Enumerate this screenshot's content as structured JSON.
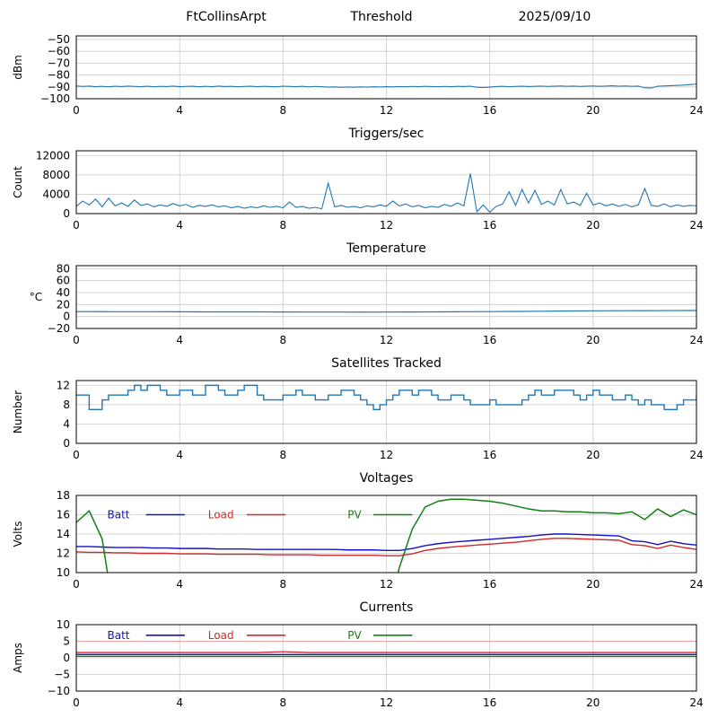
{
  "header": {
    "station": "FtCollinsArpt",
    "date": "2025/09/10"
  },
  "chart_data": [
    {
      "id": "threshold",
      "type": "line",
      "title": "Threshold",
      "ylabel": "dBm",
      "xlim": [
        0,
        24
      ],
      "xticks": [
        0,
        4,
        8,
        12,
        16,
        20,
        24
      ],
      "ylim": [
        -100,
        -47
      ],
      "yticks": [
        -50,
        -60,
        -70,
        -80,
        -90,
        -100
      ],
      "series": [
        {
          "name": "threshold_dbm",
          "color": "#1f77b4",
          "width": 1.1,
          "x0": 0,
          "dx": 0.25,
          "y": [
            -89.2,
            -89.6,
            -89.3,
            -89.8,
            -89.5,
            -89.9,
            -89.4,
            -89.7,
            -89.3,
            -89.6,
            -89.8,
            -89.4,
            -89.9,
            -89.5,
            -89.7,
            -89.3,
            -89.8,
            -89.6,
            -89.4,
            -89.9,
            -89.5,
            -89.8,
            -89.3,
            -89.7,
            -89.5,
            -89.9,
            -89.6,
            -89.4,
            -89.8,
            -89.5,
            -89.7,
            -89.9,
            -89.4,
            -89.6,
            -89.8,
            -89.5,
            -90.0,
            -89.6,
            -89.9,
            -90.2,
            -90.0,
            -90.4,
            -90.1,
            -90.3,
            -90.0,
            -90.2,
            -89.9,
            -90.1,
            -89.8,
            -90.0,
            -89.7,
            -89.9,
            -89.6,
            -89.8,
            -89.5,
            -89.7,
            -89.9,
            -89.6,
            -89.8,
            -89.5,
            -89.7,
            -89.4,
            -90.3,
            -90.6,
            -90.2,
            -89.7,
            -89.5,
            -89.8,
            -89.6,
            -89.4,
            -89.7,
            -89.5,
            -89.3,
            -89.6,
            -89.4,
            -89.2,
            -89.5,
            -89.3,
            -89.6,
            -89.4,
            -89.2,
            -89.5,
            -89.3,
            -89.1,
            -89.4,
            -89.2,
            -89.5,
            -89.3,
            -90.8,
            -91.0,
            -89.4,
            -89.2,
            -89.0,
            -88.8,
            -88.5,
            -88.0,
            -87.6
          ]
        }
      ]
    },
    {
      "id": "triggers",
      "type": "line",
      "title": "Triggers/sec",
      "ylabel": "Count",
      "xlim": [
        0,
        24
      ],
      "xticks": [
        0,
        4,
        8,
        12,
        16,
        20,
        24
      ],
      "ylim": [
        0,
        13000
      ],
      "yticks": [
        0,
        4000,
        8000,
        12000
      ],
      "series": [
        {
          "name": "triggers_per_sec",
          "color": "#1f77b4",
          "width": 1.1,
          "x0": 0,
          "dx": 0.25,
          "y": [
            1500,
            2600,
            1800,
            3000,
            1400,
            3200,
            1600,
            2200,
            1500,
            2800,
            1700,
            2000,
            1400,
            1800,
            1500,
            2100,
            1600,
            1900,
            1300,
            1700,
            1500,
            1800,
            1400,
            1600,
            1200,
            1500,
            1100,
            1400,
            1200,
            1600,
            1300,
            1500,
            1200,
            2400,
            1300,
            1500,
            1100,
            1300,
            1000,
            6300,
            1400,
            1700,
            1300,
            1500,
            1200,
            1600,
            1400,
            1800,
            1500,
            2600,
            1600,
            2000,
            1400,
            1700,
            1200,
            1500,
            1300,
            1900,
            1500,
            2200,
            1600,
            8300,
            400,
            1800,
            300,
            1500,
            2000,
            4500,
            1700,
            5000,
            2200,
            4800,
            1900,
            2600,
            1800,
            5000,
            2000,
            2400,
            1700,
            4200,
            1800,
            2200,
            1600,
            2000,
            1500,
            1900,
            1400,
            1800,
            5200,
            1700,
            1500,
            2000,
            1400,
            1800,
            1500,
            1700,
            1600
          ]
        }
      ]
    },
    {
      "id": "temperature",
      "type": "line",
      "title": "Temperature",
      "ylabel": "°C",
      "ylabel_horizontal": true,
      "xlim": [
        0,
        24
      ],
      "xticks": [
        0,
        4,
        8,
        12,
        16,
        20,
        24
      ],
      "ylim": [
        -20,
        85
      ],
      "yticks": [
        -20,
        0,
        20,
        40,
        60,
        80
      ],
      "series": [
        {
          "name": "temperature_c",
          "color": "#1f77b4",
          "width": 1.2,
          "x0": 0,
          "dx": 1,
          "y": [
            8.2,
            8.1,
            8.0,
            8.0,
            7.9,
            7.8,
            7.8,
            7.7,
            7.6,
            7.5,
            7.5,
            7.4,
            7.5,
            7.6,
            7.8,
            8.0,
            8.2,
            8.5,
            8.8,
            9.2,
            9.5,
            9.7,
            9.8,
            9.9,
            10.0
          ]
        }
      ]
    },
    {
      "id": "satellites",
      "type": "line",
      "title": "Satellites Tracked",
      "ylabel": "Number",
      "xlim": [
        0,
        24
      ],
      "xticks": [
        0,
        4,
        8,
        12,
        16,
        20,
        24
      ],
      "ylim": [
        0,
        13
      ],
      "yticks": [
        0,
        4,
        8,
        12
      ],
      "series": [
        {
          "name": "satellites_tracked",
          "color": "#1f77b4",
          "width": 1.4,
          "render": "step",
          "x0": 0,
          "dx": 0.25,
          "y": [
            10,
            10,
            7,
            7,
            9,
            10,
            10,
            10,
            11,
            12,
            11,
            12,
            12,
            11,
            10,
            10,
            11,
            11,
            10,
            10,
            12,
            12,
            11,
            10,
            10,
            11,
            12,
            12,
            10,
            9,
            9,
            9,
            10,
            10,
            11,
            10,
            10,
            9,
            9,
            10,
            10,
            11,
            11,
            10,
            9,
            8,
            7,
            8,
            9,
            10,
            11,
            11,
            10,
            11,
            11,
            10,
            9,
            9,
            10,
            10,
            9,
            8,
            8,
            8,
            9,
            8,
            8,
            8,
            8,
            9,
            10,
            11,
            10,
            10,
            11,
            11,
            11,
            10,
            9,
            10,
            11,
            10,
            10,
            9,
            9,
            10,
            9,
            8,
            9,
            8,
            8,
            7,
            7,
            8,
            9,
            9,
            10
          ]
        }
      ]
    },
    {
      "id": "voltages",
      "type": "line",
      "title": "Voltages",
      "ylabel": "Volts",
      "xlim": [
        0,
        24
      ],
      "xticks": [
        0,
        4,
        8,
        12,
        16,
        20,
        24
      ],
      "ylim": [
        10,
        18
      ],
      "yticks": [
        10,
        12,
        14,
        16,
        18
      ],
      "legend": {
        "y": 16.0,
        "items": [
          {
            "label": "Batt",
            "color": "#1111cc",
            "tx": 1.2,
            "lx0": 2.7,
            "lx1": 4.2
          },
          {
            "label": "Load",
            "color": "#d62728",
            "tx": 5.1,
            "lx0": 6.6,
            "lx1": 8.1
          },
          {
            "label": "PV",
            "color": "#0f8012",
            "tx": 10.5,
            "lx0": 11.5,
            "lx1": 13.0
          }
        ]
      },
      "series": [
        {
          "name": "batt_volts",
          "color": "#1111cc",
          "width": 1.4,
          "x0": 0,
          "dx": 0.5,
          "y": [
            12.7,
            12.7,
            12.65,
            12.6,
            12.6,
            12.6,
            12.55,
            12.55,
            12.5,
            12.5,
            12.5,
            12.45,
            12.45,
            12.45,
            12.4,
            12.4,
            12.4,
            12.4,
            12.4,
            12.4,
            12.4,
            12.35,
            12.35,
            12.35,
            12.3,
            12.3,
            12.5,
            12.8,
            13.0,
            13.15,
            13.25,
            13.35,
            13.45,
            13.55,
            13.65,
            13.75,
            13.9,
            14.0,
            14.0,
            13.95,
            13.9,
            13.85,
            13.8,
            13.3,
            13.2,
            12.9,
            13.25,
            13.0,
            12.85
          ]
        },
        {
          "name": "load_volts",
          "color": "#d62728",
          "width": 1.4,
          "x0": 0,
          "dx": 0.5,
          "y": [
            12.15,
            12.1,
            12.1,
            12.05,
            12.05,
            12.0,
            12.0,
            12.0,
            11.95,
            11.95,
            11.95,
            11.9,
            11.9,
            11.9,
            11.9,
            11.85,
            11.85,
            11.85,
            11.85,
            11.8,
            11.8,
            11.8,
            11.8,
            11.8,
            11.75,
            11.75,
            11.95,
            12.3,
            12.5,
            12.65,
            12.75,
            12.85,
            12.95,
            13.05,
            13.15,
            13.3,
            13.45,
            13.55,
            13.55,
            13.5,
            13.45,
            13.4,
            13.35,
            12.9,
            12.8,
            12.5,
            12.85,
            12.6,
            12.4
          ]
        },
        {
          "name": "pv_volts",
          "color": "#0f8012",
          "width": 1.5,
          "x0": 0,
          "dx": 0.5,
          "y": [
            15.2,
            16.4,
            13.5,
            5,
            5,
            5,
            5,
            5,
            5,
            5,
            5,
            5,
            5,
            5,
            5,
            5,
            5,
            5,
            5,
            5,
            5,
            5,
            5,
            5,
            5,
            10.5,
            14.5,
            16.8,
            17.4,
            17.6,
            17.6,
            17.5,
            17.4,
            17.2,
            16.9,
            16.6,
            16.4,
            16.4,
            16.3,
            16.3,
            16.2,
            16.2,
            16.1,
            16.3,
            15.5,
            16.6,
            15.8,
            16.5,
            16.0
          ]
        }
      ]
    },
    {
      "id": "currents",
      "type": "line",
      "title": "Currents",
      "ylabel": "Amps",
      "xlim": [
        0,
        24
      ],
      "xticks": [
        0,
        4,
        8,
        12,
        16,
        20,
        24
      ],
      "ylim": [
        -10,
        10
      ],
      "yticks": [
        -10,
        -5,
        0,
        5,
        10
      ],
      "legend": {
        "y": 6.8,
        "items": [
          {
            "label": "Batt",
            "color": "#1111cc",
            "tx": 1.2,
            "lx0": 2.7,
            "lx1": 4.2
          },
          {
            "label": "Load",
            "color": "#d62728",
            "tx": 5.1,
            "lx0": 6.6,
            "lx1": 8.1
          },
          {
            "label": "PV",
            "color": "#0f8012",
            "tx": 10.5,
            "lx0": 11.5,
            "lx1": 13.0
          }
        ]
      },
      "series": [
        {
          "name": "limit_line",
          "color": "#f2a0a0",
          "width": 1.1,
          "x0": 0,
          "dx": 24,
          "y": [
            5,
            5
          ]
        },
        {
          "name": "batt_amps",
          "color": "#1111cc",
          "width": 1.3,
          "x0": 0,
          "dx": 24,
          "y": [
            1.0,
            1.0
          ]
        },
        {
          "name": "load_amps",
          "color": "#d62728",
          "width": 1.3,
          "x0": 0,
          "dx": 1,
          "y": [
            1.6,
            1.6,
            1.6,
            1.6,
            1.6,
            1.6,
            1.6,
            1.6,
            1.85,
            1.6,
            1.6,
            1.6,
            1.6,
            1.6,
            1.6,
            1.6,
            1.6,
            1.6,
            1.6,
            1.6,
            1.6,
            1.6,
            1.6,
            1.6,
            1.6
          ]
        },
        {
          "name": "pv_amps",
          "color": "#0f8012",
          "width": 1.3,
          "x0": 0,
          "dx": 24,
          "y": [
            0.45,
            0.45
          ]
        }
      ]
    }
  ]
}
